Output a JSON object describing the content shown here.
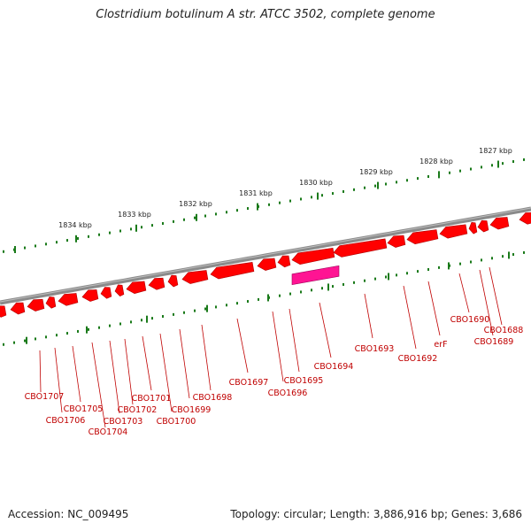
{
  "title": "Clostridium botulinum A str. ATCC 3502, complete genome",
  "footer": {
    "accession": "Accession: NC_009495",
    "summary": "Topology: circular; Length: 3,886,916 bp; Genes: 3,686"
  },
  "colors": {
    "backbone": "#8a8a8a",
    "gene": "#ff0000",
    "gene_dark": "#b00000",
    "highlight": "#ff1493",
    "tick": "#1a7a1a",
    "label": "#c00000"
  },
  "ruler_labels": [
    "1827 kbp",
    "1828 kbp",
    "1829 kbp",
    "1830 kbp",
    "1831 kbp",
    "1832 kbp",
    "1833 kbp",
    "1834 kbp"
  ],
  "gene_labels": [
    "CBO1688",
    "CBO1689",
    "CBO1690",
    "erF",
    "CBO1692",
    "CBO1693",
    "CBO1694",
    "CBO1695",
    "CBO1696",
    "CBO1697",
    "CBO1698",
    "CBO1699",
    "CBO1700",
    "CBO1701",
    "CBO1702",
    "CBO1703",
    "CBO1704",
    "CBO1705",
    "CBO1706",
    "CBO1707"
  ],
  "highlighted_gene": "CBO1694"
}
